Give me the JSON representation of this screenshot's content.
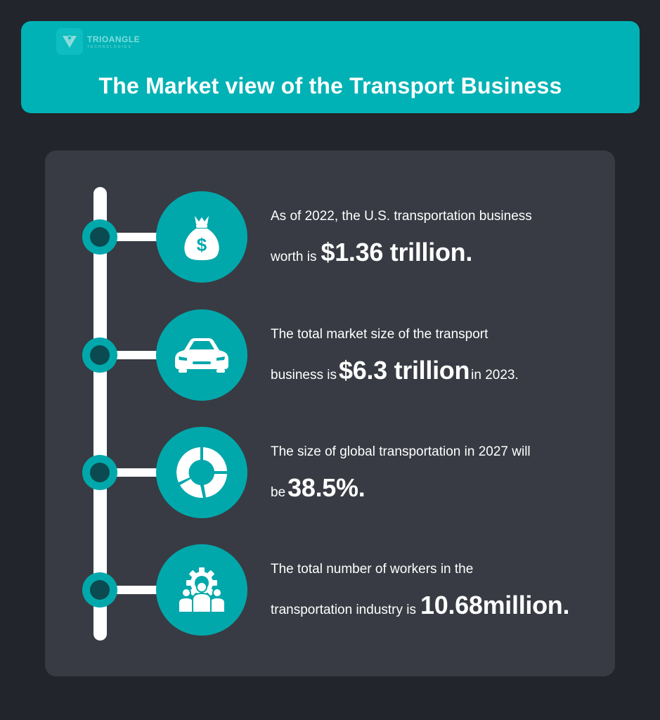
{
  "header": {
    "logo_name": "TRIOANGLE",
    "logo_sub": "TECHNOLOGIES",
    "title": "The Market view of the Transport Business"
  },
  "colors": {
    "background": "#22252c",
    "panel": "#383b43",
    "accent": "#00b2b5",
    "node_inner": "#0b4a50",
    "text": "#ffffff"
  },
  "items": [
    {
      "icon": "money-bag-icon",
      "line1": "As of 2022, the U.S. transportation business",
      "line2_pre": "worth is",
      "highlight": "$1.36 trillion.",
      "line2_post": ""
    },
    {
      "icon": "car-icon",
      "line1": "The total market size of the transport",
      "line2_pre": "business is",
      "highlight": "$6.3 trillion",
      "line2_post": "in 2023."
    },
    {
      "icon": "donut-chart-icon",
      "line1": "The size of global transportation in 2027 will",
      "line2_pre": "be",
      "highlight": "38.5%.",
      "line2_post": ""
    },
    {
      "icon": "workers-gear-icon",
      "line1": "The total number of workers in the",
      "line2_pre": "transportation industry is",
      "highlight": "10.68million.",
      "line2_post": ""
    }
  ]
}
